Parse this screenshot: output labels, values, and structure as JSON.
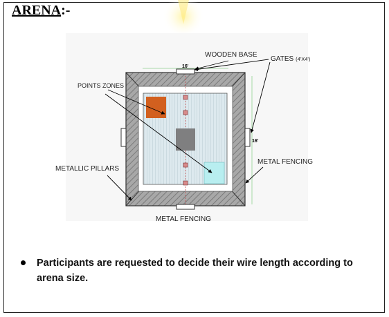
{
  "heading": {
    "word": "ARENA",
    "suffix": ":-"
  },
  "diagram": {
    "labels": {
      "wooden_base": "WOODEN BASE",
      "gates": "GATES",
      "gates_size": "(4'X4')",
      "points_zones": "POINTS ZONES",
      "metallic_pillars": "METALLIC PILLARS",
      "metal_fencing_right": "METAL FENCING",
      "metal_fencing_bottom": "METAL FENCING",
      "dim_top": "16'",
      "dim_right": "16'"
    },
    "colors": {
      "orange_zone": "#d2601f",
      "gray_zone": "#7f7f80",
      "cyan_zone": "#b8eef0",
      "field": "#d9e8ec",
      "border": "#9a9a9a",
      "accent_line": "#8fd18f"
    }
  },
  "notes": [
    "Participants are requested to decide their wire length according to arena size."
  ]
}
